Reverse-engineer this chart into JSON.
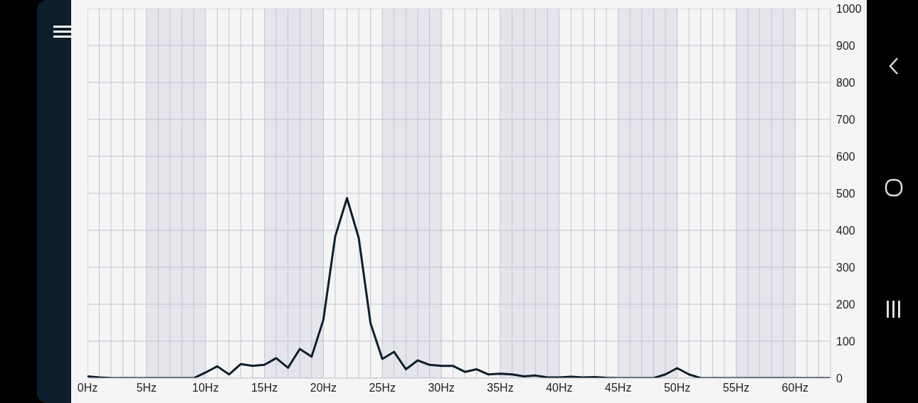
{
  "chart_data": {
    "type": "line",
    "x": [
      0,
      1,
      2,
      3,
      4,
      5,
      6,
      7,
      8,
      9,
      10,
      11,
      12,
      13,
      14,
      15,
      16,
      17,
      18,
      19,
      20,
      21,
      22,
      23,
      24,
      25,
      26,
      27,
      28,
      29,
      30,
      31,
      32,
      33,
      34,
      35,
      36,
      37,
      38,
      39,
      40,
      41,
      42,
      43,
      44,
      45,
      46,
      47,
      48,
      49,
      50,
      51,
      52,
      53,
      54,
      55,
      56,
      57,
      58,
      59,
      60,
      61,
      62,
      63
    ],
    "series": [
      {
        "color": "#0d1f2a",
        "values": [
          5,
          2,
          0,
          0,
          0,
          0,
          0,
          0,
          0,
          0,
          15,
          32,
          10,
          38,
          33,
          36,
          54,
          28,
          79,
          58,
          158,
          383,
          487,
          379,
          148,
          52,
          71,
          24,
          48,
          36,
          33,
          33,
          17,
          24,
          10,
          12,
          10,
          5,
          7,
          2,
          2,
          4,
          2,
          3,
          1,
          0,
          0,
          0,
          0,
          10,
          27,
          10,
          0,
          0,
          0,
          0,
          0,
          0,
          0,
          0,
          0,
          0,
          0,
          0
        ]
      }
    ],
    "xlim": [
      0,
      63
    ],
    "xticks": [
      {
        "value": 0,
        "label": "0Hz"
      },
      {
        "value": 1,
        "label": null
      },
      {
        "value": 2,
        "label": null
      },
      {
        "value": 3,
        "label": null
      },
      {
        "value": 4,
        "label": null
      },
      {
        "value": 5,
        "label": "5Hz"
      },
      {
        "value": 6,
        "label": null
      },
      {
        "value": 7,
        "label": null
      },
      {
        "value": 8,
        "label": null
      },
      {
        "value": 9,
        "label": null
      },
      {
        "value": 10,
        "label": "10Hz"
      },
      {
        "value": 11,
        "label": null
      },
      {
        "value": 12,
        "label": null
      },
      {
        "value": 13,
        "label": null
      },
      {
        "value": 14,
        "label": null
      },
      {
        "value": 15,
        "label": "15Hz"
      },
      {
        "value": 16,
        "label": null
      },
      {
        "value": 17,
        "label": null
      },
      {
        "value": 18,
        "label": null
      },
      {
        "value": 19,
        "label": null
      },
      {
        "value": 20,
        "label": "20Hz"
      },
      {
        "value": 21,
        "label": null
      },
      {
        "value": 22,
        "label": null
      },
      {
        "value": 23,
        "label": null
      },
      {
        "value": 24,
        "label": null
      },
      {
        "value": 25,
        "label": "25Hz"
      },
      {
        "value": 26,
        "label": null
      },
      {
        "value": 27,
        "label": null
      },
      {
        "value": 28,
        "label": null
      },
      {
        "value": 29,
        "label": null
      },
      {
        "value": 30,
        "label": "30Hz"
      },
      {
        "value": 31,
        "label": null
      },
      {
        "value": 32,
        "label": null
      },
      {
        "value": 33,
        "label": null
      },
      {
        "value": 34,
        "label": null
      },
      {
        "value": 35,
        "label": "35Hz"
      },
      {
        "value": 36,
        "label": null
      },
      {
        "value": 37,
        "label": null
      },
      {
        "value": 38,
        "label": null
      },
      {
        "value": 39,
        "label": null
      },
      {
        "value": 40,
        "label": "40Hz"
      },
      {
        "value": 41,
        "label": null
      },
      {
        "value": 42,
        "label": null
      },
      {
        "value": 43,
        "label": null
      },
      {
        "value": 44,
        "label": null
      },
      {
        "value": 45,
        "label": "45Hz"
      },
      {
        "value": 46,
        "label": null
      },
      {
        "value": 47,
        "label": null
      },
      {
        "value": 48,
        "label": null
      },
      {
        "value": 49,
        "label": null
      },
      {
        "value": 50,
        "label": "50Hz"
      },
      {
        "value": 51,
        "label": null
      },
      {
        "value": 52,
        "label": null
      },
      {
        "value": 53,
        "label": null
      },
      {
        "value": 54,
        "label": null
      },
      {
        "value": 55,
        "label": "55Hz"
      },
      {
        "value": 56,
        "label": null
      },
      {
        "value": 57,
        "label": null
      },
      {
        "value": 58,
        "label": null
      },
      {
        "value": 59,
        "label": null
      },
      {
        "value": 60,
        "label": "60Hz"
      },
      {
        "value": 61,
        "label": null
      },
      {
        "value": 62,
        "label": null
      }
    ],
    "ylim": [
      0,
      1000
    ],
    "yticks": [
      0,
      100,
      200,
      300,
      400,
      500,
      600,
      700,
      800,
      900,
      1000
    ],
    "grid": true,
    "bands": [
      {
        "axis": "x",
        "from": 5,
        "to": 10,
        "color": "#e5e5ec"
      },
      {
        "axis": "x",
        "from": 15,
        "to": 20,
        "color": "#e5e5ec"
      },
      {
        "axis": "x",
        "from": 25,
        "to": 30,
        "color": "#e5e5ec"
      },
      {
        "axis": "x",
        "from": 35,
        "to": 40,
        "color": "#e5e5ec"
      },
      {
        "axis": "x",
        "from": 45,
        "to": 50,
        "color": "#e5e5ec"
      },
      {
        "axis": "x",
        "from": 55,
        "to": 60,
        "color": "#e5e5ec"
      }
    ]
  }
}
